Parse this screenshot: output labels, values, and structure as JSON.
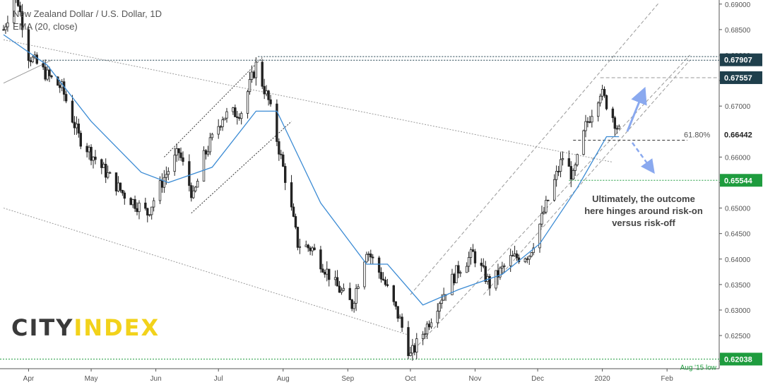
{
  "chart_data": {
    "type": "candlestick",
    "title": "New Zealand Dollar / U.S. Dollar, 1D",
    "subtitle": "EMA (20, close)",
    "x_ticks": [
      "Apr",
      "May",
      "Jun",
      "Jul",
      "Aug",
      "Sep",
      "Oct",
      "Nov",
      "Dec",
      "2020",
      "Feb"
    ],
    "y_ticks": [
      "0.69000",
      "0.68500",
      "0.68000",
      "0.67500",
      "0.67000",
      "0.66500",
      "0.66000",
      "0.65500",
      "0.65000",
      "0.64500",
      "0.64000",
      "0.63500",
      "0.63000",
      "0.62500",
      "0.62000"
    ],
    "ylim": [
      0.6185,
      0.6908
    ],
    "x_range": [
      "2019-03-20",
      "2020-02-26"
    ],
    "price_labels": [
      {
        "value": 0.67907,
        "text": "0.67907",
        "color": "#1f3f4c"
      },
      {
        "value": 0.67557,
        "text": "0.67557",
        "color": "#1f3f4c"
      },
      {
        "value": 0.66442,
        "text": "0.66442",
        "color": "#ffffff"
      },
      {
        "value": 0.65544,
        "text": "0.65544",
        "color": "#1e9c3e"
      },
      {
        "value": 0.62038,
        "text": "0.62038",
        "color": "#1e9c3e"
      }
    ],
    "annotations": {
      "fib": "61.80%",
      "aug15": "Aug '15 low",
      "note": "Ultimately, the outcome here hinges around risk-on versus risk-off"
    },
    "keypoints": [
      [
        "2019-03-20",
        0.685
      ],
      [
        "2019-03-26",
        0.6925
      ],
      [
        "2019-04-01",
        0.68
      ],
      [
        "2019-04-10",
        0.676
      ],
      [
        "2019-04-17",
        0.6735
      ],
      [
        "2019-04-25",
        0.664
      ],
      [
        "2019-05-06",
        0.658
      ],
      [
        "2019-05-16",
        0.653
      ],
      [
        "2019-05-28",
        0.649
      ],
      [
        "2019-06-05",
        0.656
      ],
      [
        "2019-06-12",
        0.661
      ],
      [
        "2019-06-19",
        0.652
      ],
      [
        "2019-06-24",
        0.66
      ],
      [
        "2019-07-03",
        0.668
      ],
      [
        "2019-07-12",
        0.669
      ],
      [
        "2019-07-19",
        0.678
      ],
      [
        "2019-07-25",
        0.671
      ],
      [
        "2019-08-02",
        0.656
      ],
      [
        "2019-08-08",
        0.643
      ],
      [
        "2019-08-15",
        0.642
      ],
      [
        "2019-08-26",
        0.635
      ],
      [
        "2019-09-03",
        0.631
      ],
      [
        "2019-09-10",
        0.642
      ],
      [
        "2019-09-18",
        0.636
      ],
      [
        "2019-09-26",
        0.628
      ],
      [
        "2019-10-01",
        0.621
      ],
      [
        "2019-10-09",
        0.627
      ],
      [
        "2019-10-15",
        0.632
      ],
      [
        "2019-10-24",
        0.638
      ],
      [
        "2019-10-31",
        0.641
      ],
      [
        "2019-11-08",
        0.635
      ],
      [
        "2019-11-18",
        0.64
      ],
      [
        "2019-11-27",
        0.641
      ],
      [
        "2019-12-03",
        0.648
      ],
      [
        "2019-12-13",
        0.66
      ],
      [
        "2019-12-18",
        0.656
      ],
      [
        "2019-12-24",
        0.666
      ],
      [
        "2019-12-31",
        0.673
      ],
      [
        "2020-01-06",
        0.668
      ],
      [
        "2020-01-09",
        0.665
      ]
    ],
    "ema_keypoints": [
      [
        "2019-03-20",
        0.684
      ],
      [
        "2019-04-10",
        0.678
      ],
      [
        "2019-05-01",
        0.667
      ],
      [
        "2019-05-25",
        0.657
      ],
      [
        "2019-06-07",
        0.655
      ],
      [
        "2019-06-28",
        0.658
      ],
      [
        "2019-07-19",
        0.669
      ],
      [
        "2019-07-29",
        0.669
      ],
      [
        "2019-08-19",
        0.651
      ],
      [
        "2019-09-10",
        0.639
      ],
      [
        "2019-09-20",
        0.639
      ],
      [
        "2019-10-07",
        0.631
      ],
      [
        "2019-10-24",
        0.634
      ],
      [
        "2019-11-14",
        0.637
      ],
      [
        "2019-12-02",
        0.643
      ],
      [
        "2019-12-20",
        0.654
      ],
      [
        "2020-01-03",
        0.664
      ],
      [
        "2020-01-09",
        0.664
      ]
    ]
  }
}
